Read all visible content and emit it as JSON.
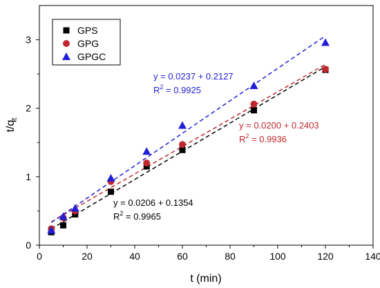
{
  "chart_data": {
    "type": "scatter",
    "xlabel": "t (min)",
    "ylabel": "t/q",
    "ylabel_subscript": "t",
    "xlim": [
      0,
      140
    ],
    "ylim": [
      0,
      3.5
    ],
    "xticks": [
      0,
      20,
      40,
      60,
      80,
      100,
      120,
      140
    ],
    "yticks": [
      0,
      1,
      2,
      3
    ],
    "legend_position": "top-left",
    "grid": false,
    "series": [
      {
        "name": "GPS",
        "marker": "square",
        "color": "#000000",
        "x": [
          5,
          10,
          15,
          30,
          45,
          60,
          90,
          120
        ],
        "y": [
          0.19,
          0.29,
          0.45,
          0.78,
          1.15,
          1.39,
          1.97,
          2.56
        ],
        "fit": {
          "slope": 0.0206,
          "intercept": 0.1354,
          "x_range": [
            5,
            120
          ]
        },
        "equation": "y = 0.0206 + 0.1354",
        "r2_prefix": "R",
        "r2_value": " = 0.9965"
      },
      {
        "name": "GPG",
        "marker": "circle",
        "color": "#c0282d",
        "x": [
          5,
          10,
          15,
          30,
          45,
          60,
          90,
          120
        ],
        "y": [
          0.24,
          0.4,
          0.5,
          0.93,
          1.2,
          1.47,
          2.06,
          2.57
        ],
        "fit": {
          "slope": 0.02,
          "intercept": 0.2403,
          "x_range": [
            5,
            120
          ]
        },
        "equation": "y = 0.0200 + 0.2403",
        "r2_prefix": "R",
        "r2_value": " = 0.9936"
      },
      {
        "name": "GPGC",
        "marker": "triangle",
        "color": "#1f1fd8",
        "x": [
          5,
          10,
          15,
          30,
          45,
          60,
          90,
          120
        ],
        "y": [
          0.22,
          0.42,
          0.54,
          0.98,
          1.37,
          1.75,
          2.33,
          2.96
        ],
        "fit": {
          "slope": 0.0237,
          "intercept": 0.2127,
          "x_range": [
            5,
            120
          ]
        },
        "equation": "y = 0.0237 + 0.2127",
        "r2_prefix": "R",
        "r2_value": " = 0.9925"
      }
    ]
  }
}
